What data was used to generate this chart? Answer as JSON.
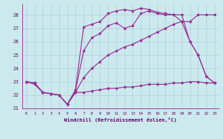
{
  "xlabel": "Windchill (Refroidissement éolien,°C)",
  "xlim": [
    -0.5,
    23.5
  ],
  "ylim": [
    21.0,
    28.8
  ],
  "yticks": [
    21,
    22,
    23,
    24,
    25,
    26,
    27,
    28
  ],
  "xticks": [
    0,
    1,
    2,
    3,
    4,
    5,
    6,
    7,
    8,
    9,
    10,
    11,
    12,
    13,
    14,
    15,
    16,
    17,
    18,
    19,
    20,
    21,
    22,
    23
  ],
  "background_color": "#cce9ee",
  "grid_color": "#aacfd8",
  "line_color": "#993399",
  "line1_x": [
    0,
    1,
    2,
    3,
    4,
    5,
    6,
    7,
    8,
    9,
    10,
    11,
    12,
    13,
    14,
    15,
    16,
    17,
    18,
    19,
    20,
    21,
    22,
    23
  ],
  "line1_y": [
    23.0,
    22.9,
    22.2,
    22.1,
    22.0,
    21.3,
    22.2,
    22.2,
    22.3,
    22.4,
    22.5,
    22.5,
    22.6,
    22.6,
    22.7,
    22.8,
    22.8,
    22.8,
    22.9,
    22.9,
    23.0,
    23.0,
    22.9,
    22.9
  ],
  "line2_x": [
    0,
    1,
    2,
    3,
    4,
    5,
    6,
    7,
    8,
    9,
    10,
    11,
    12,
    13,
    14,
    15,
    16,
    17,
    18,
    19,
    20,
    21,
    22,
    23
  ],
  "line2_y": [
    23.0,
    22.8,
    22.2,
    22.1,
    22.0,
    21.3,
    22.2,
    23.3,
    24.0,
    24.5,
    25.0,
    25.3,
    25.6,
    25.8,
    26.1,
    26.4,
    26.7,
    27.0,
    27.3,
    27.5,
    26.0,
    25.0,
    23.4,
    22.9
  ],
  "line3_x": [
    0,
    1,
    2,
    3,
    4,
    5,
    6,
    7,
    8,
    9,
    10,
    11,
    12,
    13,
    14,
    15,
    16,
    17,
    18,
    19,
    20,
    21,
    22,
    23
  ],
  "line3_y": [
    23.0,
    22.9,
    22.2,
    22.1,
    22.0,
    21.3,
    22.3,
    25.3,
    26.3,
    26.6,
    27.2,
    27.4,
    27.0,
    27.2,
    28.1,
    28.3,
    28.1,
    28.0,
    28.0,
    27.5,
    27.5,
    28.0,
    28.0,
    28.0
  ],
  "line4_x": [
    0,
    1,
    2,
    3,
    4,
    5,
    6,
    7,
    8,
    9,
    10,
    11,
    12,
    13,
    14,
    15,
    16,
    17,
    18,
    19,
    20,
    21,
    22,
    23
  ],
  "line4_y": [
    23.0,
    22.9,
    22.2,
    22.1,
    22.0,
    21.3,
    22.4,
    27.1,
    27.3,
    27.5,
    28.1,
    28.3,
    28.4,
    28.3,
    28.5,
    28.4,
    28.2,
    28.1,
    28.0,
    28.0,
    26.0,
    25.0,
    23.4,
    22.9
  ]
}
